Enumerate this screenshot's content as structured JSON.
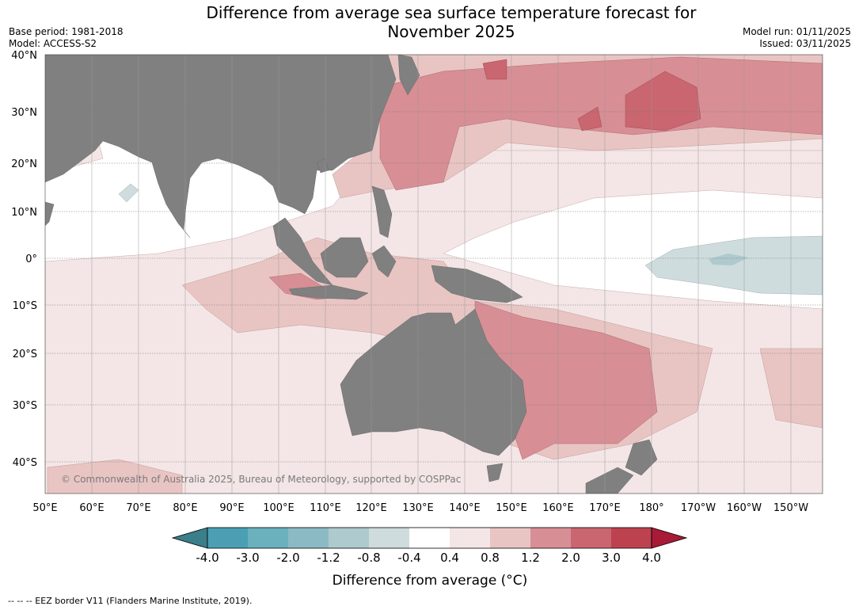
{
  "title_line1": "Difference from average sea surface temperature forecast for",
  "title_line2": "November 2025",
  "base_period": "Base period: 1981-2018",
  "model": "Model: ACCESS-S2",
  "model_run": "Model run: 01/11/2025",
  "issued": "Issued: 03/11/2025",
  "lat_labels": [
    "40°N",
    "30°N",
    "20°N",
    "10°N",
    "0°",
    "10°S",
    "20°S",
    "30°S",
    "40°S"
  ],
  "lon_labels": [
    "50°E",
    "60°E",
    "70°E",
    "80°E",
    "90°E",
    "100°E",
    "110°E",
    "120°E",
    "130°E",
    "140°E",
    "150°E",
    "160°E",
    "170°E",
    "180°",
    "170°W",
    "160°W",
    "150°W"
  ],
  "copyright": "© Commonwealth of Australia 2025, Bureau of Meteorology, supported by COSPPac",
  "colorbar": {
    "ticks": [
      "-4.0",
      "-3.0",
      "-2.0",
      "-1.2",
      "-0.8",
      "-0.4",
      "0.4",
      "0.8",
      "1.2",
      "2.0",
      "3.0",
      "4.0"
    ],
    "colors": [
      "#3a7f8a",
      "#4aa0b2",
      "#6bb0bd",
      "#8cbac4",
      "#aecacf",
      "#cfdcdd",
      "#ffffff",
      "#f4e6e6",
      "#e8c5c3",
      "#d88e95",
      "#c9666f",
      "#bd4250",
      "#a81a36"
    ],
    "title": "Difference from average (°C)"
  },
  "footnote": "-- -- -- EEZ border V11 (Flanders Marine Institute, 2019).",
  "colors": {
    "land": "#808080",
    "ocean_neutral": "#ffffff",
    "grid": "#555555"
  }
}
